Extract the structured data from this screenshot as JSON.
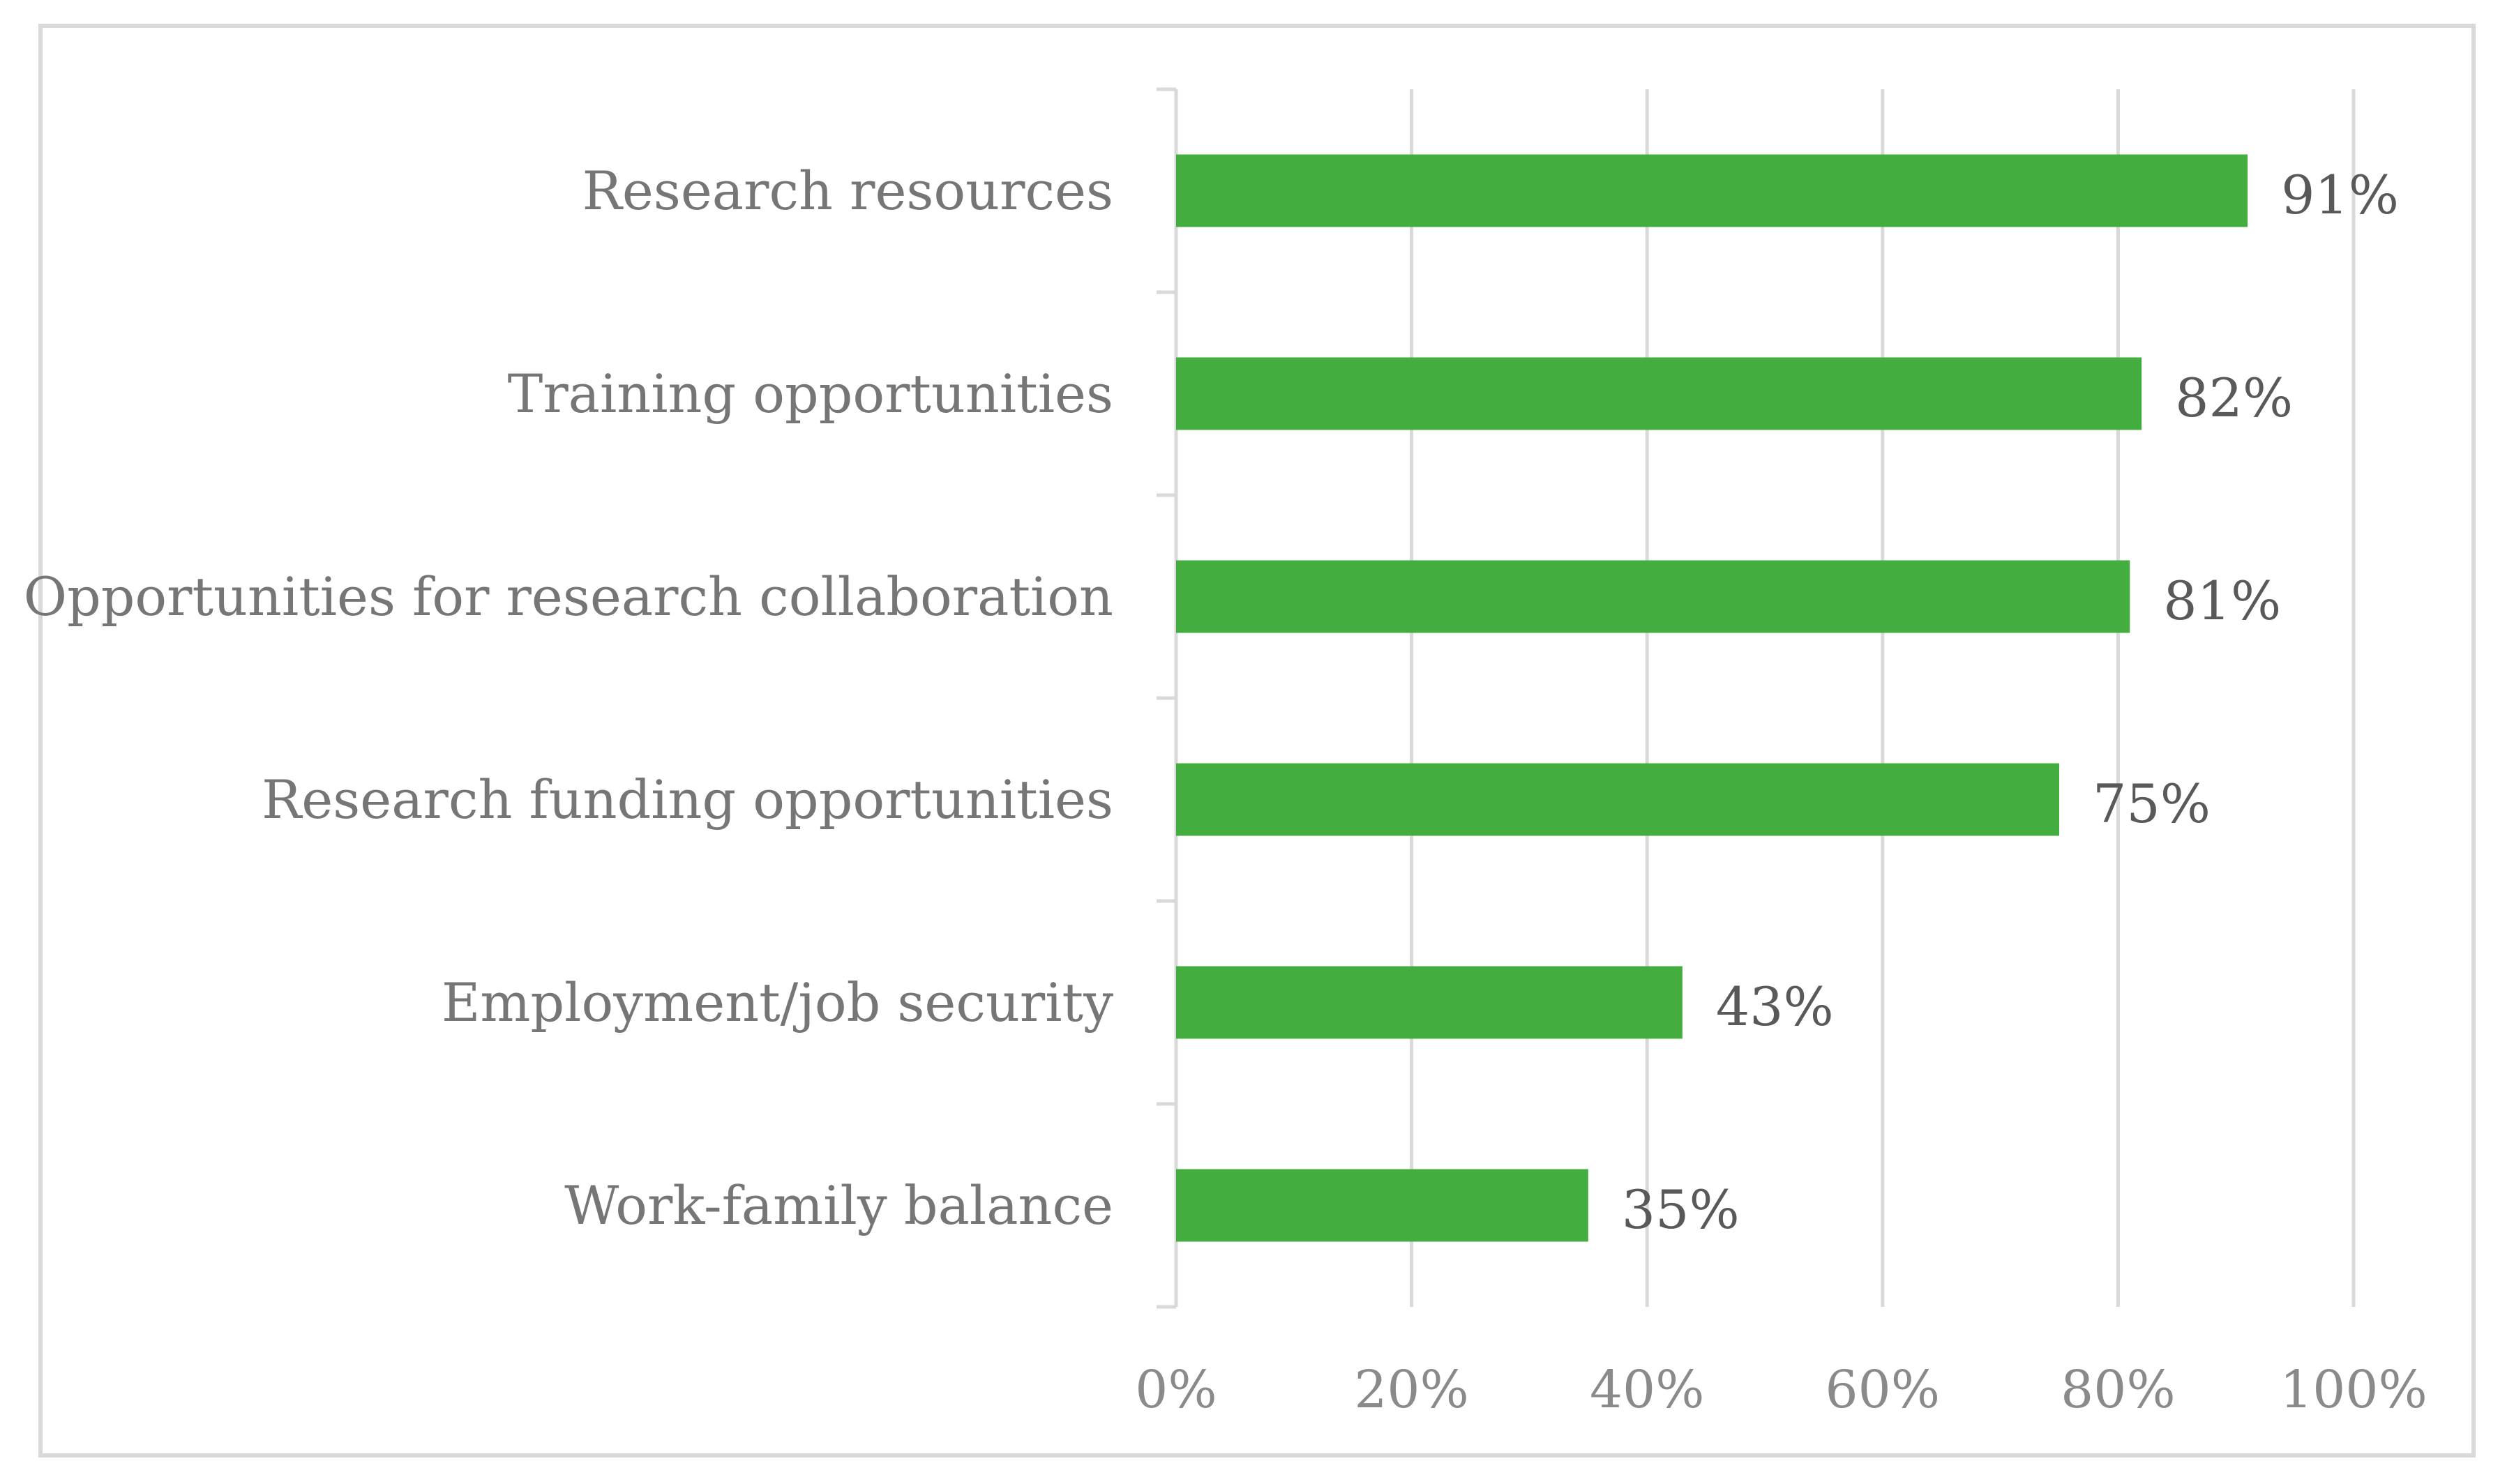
{
  "chart_data": {
    "type": "bar",
    "orientation": "horizontal",
    "categories": [
      "Research resources",
      "Training opportunities",
      "Opportunities for research collaboration",
      "Research funding opportunities",
      "Employment/job security",
      "Work-family balance"
    ],
    "values": [
      91,
      82,
      81,
      75,
      43,
      35
    ],
    "data_labels": [
      "91%",
      "82%",
      "81%",
      "75%",
      "43%",
      "35%"
    ],
    "xlim": [
      0,
      100
    ],
    "x_ticks": [
      0,
      20,
      40,
      60,
      80,
      100
    ],
    "x_tick_labels": [
      "0%",
      "20%",
      "40%",
      "60%",
      "80%",
      "100%"
    ],
    "title": "",
    "xlabel": "",
    "ylabel": "",
    "grid": "vertical",
    "legend": "none",
    "bar_color": "#43AE3F",
    "gridline_color": "#D9D9D9",
    "text_color": "#767676"
  }
}
